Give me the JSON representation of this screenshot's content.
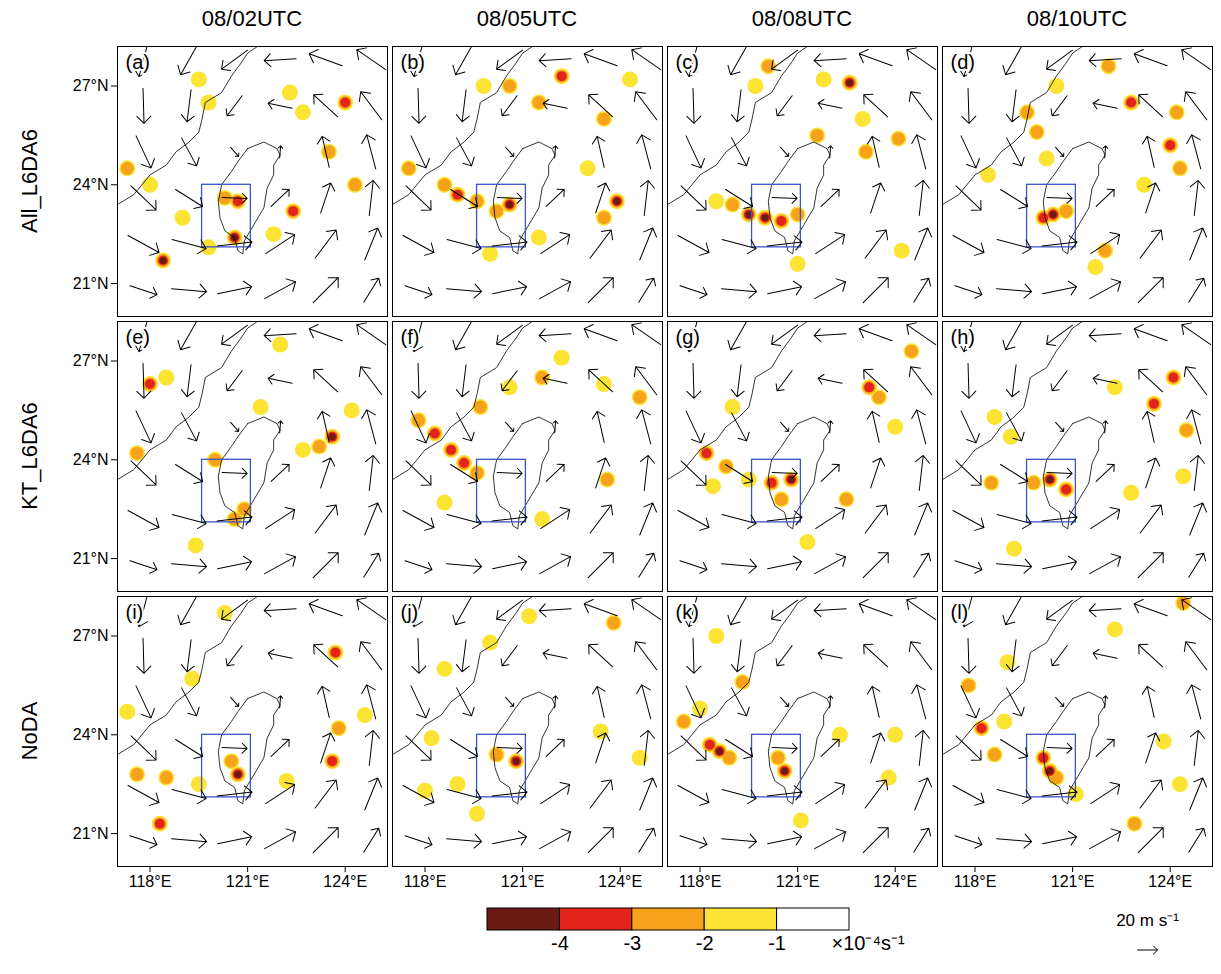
{
  "chart_data": {
    "type": "vector_map",
    "columns": [
      "08/02UTC",
      "08/05UTC",
      "08/08UTC",
      "08/10UTC"
    ],
    "rows": [
      "All_L6DA6",
      "KT_L6DA6",
      "NoDA"
    ],
    "xlim": [
      117,
      125.3
    ],
    "xticks": [
      {
        "value": 118,
        "label": "118°E"
      },
      {
        "value": 121,
        "label": "121°E"
      },
      {
        "value": 124,
        "label": "124°E"
      }
    ],
    "ylim": [
      20,
      28.2
    ],
    "yticks": [
      {
        "value": 21,
        "label": "21°N"
      },
      {
        "value": 24,
        "label": "24°N"
      },
      {
        "value": 27,
        "label": "27°N"
      }
    ],
    "box": {
      "lon": [
        119.6,
        121.1
      ],
      "lat": [
        22.1,
        24.0
      ]
    },
    "coastlines": [
      [
        [
          121.0,
          25.1
        ],
        [
          121.5,
          25.3
        ],
        [
          121.9,
          25.1
        ],
        [
          122.0,
          24.9
        ],
        [
          121.8,
          24.6
        ],
        [
          121.8,
          24.3
        ],
        [
          121.6,
          23.9
        ],
        [
          121.5,
          23.3
        ],
        [
          121.2,
          22.8
        ],
        [
          120.9,
          22.3
        ],
        [
          120.85,
          21.9
        ],
        [
          120.7,
          22.0
        ],
        [
          120.6,
          22.4
        ],
        [
          120.3,
          22.6
        ],
        [
          120.15,
          23.0
        ],
        [
          120.1,
          23.5
        ],
        [
          120.2,
          24.0
        ],
        [
          120.5,
          24.4
        ],
        [
          120.7,
          24.7
        ],
        [
          121.0,
          25.1
        ]
      ],
      [
        [
          117.0,
          23.4
        ],
        [
          117.5,
          23.7
        ],
        [
          118.0,
          24.3
        ],
        [
          118.5,
          24.6
        ],
        [
          118.8,
          25.0
        ],
        [
          119.2,
          25.3
        ],
        [
          119.5,
          25.6
        ],
        [
          119.6,
          26.0
        ],
        [
          119.7,
          26.5
        ],
        [
          120.2,
          26.8
        ],
        [
          120.5,
          27.3
        ],
        [
          120.8,
          27.7
        ],
        [
          121.0,
          28.0
        ],
        [
          121.3,
          28.2
        ]
      ]
    ],
    "wind": {
      "lon": [
        117.8,
        119.2,
        120.6,
        122.0,
        123.4,
        124.8
      ],
      "lat": [
        20.8,
        22.2,
        23.6,
        25.0,
        26.4,
        27.8
      ],
      "u": [
        [
          27,
          35,
          34,
          31,
          25,
          15
        ],
        [
          31,
          34,
          35,
          29,
          21,
          13
        ],
        [
          25,
          27,
          25,
          18,
          10,
          4
        ],
        [
          15,
          15,
          8,
          1,
          -7,
          -9
        ],
        [
          1,
          -4,
          -15,
          -24,
          -24,
          -21
        ],
        [
          -9,
          -17,
          -26,
          -32,
          -33,
          -29
        ]
      ],
      "v": [
        [
          -9,
          -3,
          7,
          17,
          25,
          24
        ],
        [
          -17,
          -9,
          4,
          19,
          28,
          32
        ],
        [
          -24,
          -17,
          -1,
          17,
          30,
          35
        ],
        [
          -32,
          -28,
          -9,
          12,
          31,
          34
        ],
        [
          -35,
          -32,
          -20,
          5,
          22,
          28
        ],
        [
          -34,
          -30,
          -19,
          -2,
          12,
          20
        ]
      ]
    },
    "reference_vector": {
      "value": 20,
      "label": "20 m s⁻¹"
    },
    "colorbar": {
      "bins": [
        -5,
        -4,
        -3,
        -2,
        -1,
        0
      ],
      "colors": [
        "#6b1a14",
        "#e3241b",
        "#f7a21b",
        "#fbe434",
        "#ffffff"
      ],
      "ticks": [
        -4,
        -3,
        -2,
        -1
      ],
      "label": "×10⁻⁴s⁻¹"
    },
    "panels": [
      {
        "letter": "(a)",
        "cells": [
          [
            120.3,
            23.6,
            -2.5
          ],
          [
            120.7,
            23.5,
            -3.5
          ],
          [
            120.6,
            22.4,
            -4.5
          ],
          [
            118.4,
            21.7,
            -4.5
          ],
          [
            117.3,
            24.5,
            -2.5
          ],
          [
            118.0,
            24.0,
            -1.5
          ],
          [
            119.0,
            23.0,
            -1.5
          ],
          [
            124.0,
            26.5,
            -3.5
          ],
          [
            123.5,
            25.0,
            -2.5
          ],
          [
            122.7,
            26.2,
            -2.0
          ],
          [
            122.3,
            26.8,
            -1.5
          ],
          [
            124.3,
            24.0,
            -2.5
          ],
          [
            122.4,
            23.2,
            -3.5
          ],
          [
            121.8,
            22.5,
            -1.5
          ],
          [
            119.8,
            22.1,
            -1.5
          ],
          [
            119.5,
            27.2,
            -1.5
          ],
          [
            119.8,
            26.5,
            -1.5
          ]
        ]
      },
      {
        "letter": "(b)",
        "cells": [
          [
            118.6,
            24.0,
            -2.5
          ],
          [
            119.0,
            23.7,
            -3.5
          ],
          [
            119.6,
            23.5,
            -3.0
          ],
          [
            120.6,
            23.4,
            -4.5
          ],
          [
            120.2,
            23.2,
            -2.5
          ],
          [
            123.9,
            23.5,
            -4.5
          ],
          [
            123.5,
            23.0,
            -2.5
          ],
          [
            121.5,
            22.4,
            -1.5
          ],
          [
            120.0,
            21.9,
            -2.0
          ],
          [
            119.8,
            27.0,
            -1.5
          ],
          [
            120.6,
            27.0,
            -2.5
          ],
          [
            121.5,
            26.5,
            -2.5
          ],
          [
            122.2,
            27.3,
            -3.5
          ],
          [
            123.5,
            26.0,
            -2.5
          ],
          [
            124.3,
            27.2,
            -1.5
          ],
          [
            117.5,
            24.5,
            -2.5
          ],
          [
            123.0,
            24.5,
            -1.5
          ]
        ]
      },
      {
        "letter": "(c)",
        "cells": [
          [
            119.5,
            23.1,
            -4.5
          ],
          [
            120.0,
            23.0,
            -4.5
          ],
          [
            120.5,
            22.9,
            -3.5
          ],
          [
            121.0,
            23.1,
            -2.5
          ],
          [
            119.0,
            23.4,
            -2.5
          ],
          [
            118.5,
            23.5,
            -1.5
          ],
          [
            120.1,
            27.6,
            -2.5
          ],
          [
            119.7,
            27.0,
            -1.5
          ],
          [
            121.8,
            27.2,
            -1.5
          ],
          [
            122.6,
            27.1,
            -4.5
          ],
          [
            121.6,
            25.5,
            -3.0
          ],
          [
            123.1,
            25.0,
            -2.5
          ],
          [
            124.1,
            25.4,
            -2.5
          ],
          [
            123.0,
            26.0,
            -1.5
          ],
          [
            121.0,
            21.6,
            -1.5
          ],
          [
            124.2,
            22.0,
            -1.5
          ]
        ]
      },
      {
        "letter": "(d)",
        "cells": [
          [
            120.4,
            23.1,
            -4.5
          ],
          [
            120.1,
            23.0,
            -3.5
          ],
          [
            120.8,
            23.2,
            -3.0
          ],
          [
            119.6,
            26.2,
            -3.0
          ],
          [
            119.9,
            25.6,
            -2.5
          ],
          [
            120.5,
            27.0,
            -1.5
          ],
          [
            122.1,
            27.6,
            -2.5
          ],
          [
            122.8,
            26.5,
            -3.5
          ],
          [
            124.2,
            26.2,
            -2.5
          ],
          [
            124.0,
            25.2,
            -3.5
          ],
          [
            124.3,
            24.5,
            -2.5
          ],
          [
            123.2,
            24.0,
            -1.5
          ],
          [
            122.0,
            22.0,
            -3.0
          ],
          [
            121.7,
            21.5,
            -1.5
          ],
          [
            118.4,
            24.3,
            -1.5
          ],
          [
            120.2,
            24.8,
            -1.5
          ]
        ]
      },
      {
        "letter": "(e)",
        "cells": [
          [
            120.0,
            24.0,
            -2.5
          ],
          [
            120.9,
            22.5,
            -3.0
          ],
          [
            120.6,
            22.2,
            -2.5
          ],
          [
            118.0,
            26.3,
            -3.5
          ],
          [
            118.5,
            26.5,
            -1.5
          ],
          [
            123.6,
            24.7,
            -4.5
          ],
          [
            123.2,
            24.4,
            -2.5
          ],
          [
            122.7,
            24.3,
            -2.0
          ],
          [
            117.6,
            24.2,
            -2.5
          ],
          [
            124.2,
            25.5,
            -1.5
          ],
          [
            119.4,
            21.4,
            -1.5
          ],
          [
            122.0,
            27.5,
            -1.5
          ],
          [
            121.4,
            25.6,
            -1.5
          ]
        ]
      },
      {
        "letter": "(f)",
        "cells": [
          [
            118.3,
            24.8,
            -3.5
          ],
          [
            118.8,
            24.3,
            -4.0
          ],
          [
            119.2,
            23.9,
            -3.5
          ],
          [
            119.6,
            23.6,
            -2.5
          ],
          [
            117.8,
            25.2,
            -2.5
          ],
          [
            119.7,
            25.6,
            -2.5
          ],
          [
            120.6,
            26.2,
            -1.5
          ],
          [
            121.6,
            26.5,
            -2.5
          ],
          [
            122.2,
            27.1,
            -2.0
          ],
          [
            123.5,
            26.3,
            -1.5
          ],
          [
            124.6,
            25.9,
            -2.5
          ],
          [
            123.6,
            23.4,
            -2.5
          ],
          [
            121.6,
            22.2,
            -1.5
          ],
          [
            118.6,
            22.7,
            -1.5
          ]
        ]
      },
      {
        "letter": "(g)",
        "cells": [
          [
            118.2,
            24.2,
            -3.5
          ],
          [
            118.8,
            23.8,
            -3.0
          ],
          [
            120.2,
            23.3,
            -3.5
          ],
          [
            120.8,
            23.4,
            -4.5
          ],
          [
            120.5,
            22.8,
            -3.0
          ],
          [
            119.5,
            23.4,
            -2.0
          ],
          [
            118.4,
            23.2,
            -1.5
          ],
          [
            123.2,
            26.2,
            -4.0
          ],
          [
            123.5,
            25.9,
            -2.5
          ],
          [
            124.5,
            27.3,
            -2.5
          ],
          [
            119.0,
            25.6,
            -1.5
          ],
          [
            124.0,
            25.0,
            -1.5
          ],
          [
            122.5,
            22.8,
            -2.5
          ],
          [
            121.3,
            21.5,
            -1.5
          ]
        ]
      },
      {
        "letter": "(h)",
        "cells": [
          [
            120.3,
            23.4,
            -4.5
          ],
          [
            119.8,
            23.3,
            -2.5
          ],
          [
            120.8,
            23.1,
            -3.5
          ],
          [
            118.5,
            23.3,
            -2.5
          ],
          [
            123.5,
            25.7,
            -4.0
          ],
          [
            124.1,
            26.5,
            -3.5
          ],
          [
            124.5,
            24.9,
            -3.0
          ],
          [
            122.3,
            26.2,
            -2.0
          ],
          [
            118.6,
            25.3,
            -1.5
          ],
          [
            119.1,
            24.7,
            -1.5
          ],
          [
            119.2,
            21.3,
            -2.0
          ],
          [
            122.8,
            23.0,
            -1.5
          ],
          [
            124.4,
            23.5,
            -1.5
          ]
        ]
      },
      {
        "letter": "(i)",
        "cells": [
          [
            120.7,
            22.8,
            -4.5
          ],
          [
            120.5,
            23.2,
            -3.0
          ],
          [
            118.5,
            22.7,
            -3.0
          ],
          [
            117.6,
            22.8,
            -2.5
          ],
          [
            118.3,
            21.3,
            -3.5
          ],
          [
            119.5,
            22.5,
            -1.5
          ],
          [
            123.8,
            24.2,
            -3.0
          ],
          [
            123.6,
            23.2,
            -3.5
          ],
          [
            124.6,
            24.6,
            -2.0
          ],
          [
            123.7,
            26.5,
            -4.0
          ],
          [
            122.2,
            22.6,
            -2.0
          ],
          [
            117.3,
            24.7,
            -1.5
          ],
          [
            119.3,
            25.7,
            -1.5
          ],
          [
            120.3,
            27.7,
            -1.5
          ]
        ]
      },
      {
        "letter": "(j)",
        "cells": [
          [
            120.8,
            23.2,
            -4.5
          ],
          [
            120.2,
            23.4,
            -2.5
          ],
          [
            118.2,
            23.9,
            -1.5
          ],
          [
            119.0,
            22.5,
            -2.0
          ],
          [
            118.0,
            22.3,
            -1.5
          ],
          [
            123.8,
            27.4,
            -3.0
          ],
          [
            121.2,
            27.6,
            -1.5
          ],
          [
            120.0,
            26.8,
            -1.5
          ],
          [
            123.4,
            24.1,
            -1.5
          ],
          [
            124.6,
            23.3,
            -1.5
          ],
          [
            118.6,
            26.0,
            -1.5
          ],
          [
            119.6,
            21.6,
            -1.5
          ]
        ]
      },
      {
        "letter": "(k)",
        "cells": [
          [
            118.3,
            23.7,
            -3.5
          ],
          [
            118.6,
            23.5,
            -4.5
          ],
          [
            118.9,
            23.3,
            -3.0
          ],
          [
            120.6,
            22.9,
            -4.5
          ],
          [
            120.4,
            23.3,
            -3.0
          ],
          [
            117.5,
            24.4,
            -2.5
          ],
          [
            118.0,
            24.8,
            -2.0
          ],
          [
            119.3,
            25.6,
            -2.5
          ],
          [
            124.0,
            24.0,
            -1.5
          ],
          [
            123.8,
            22.7,
            -1.5
          ],
          [
            122.3,
            24.0,
            -1.5
          ],
          [
            121.1,
            21.4,
            -1.5
          ],
          [
            118.5,
            27.0,
            -1.5
          ]
        ]
      },
      {
        "letter": "(l)",
        "cells": [
          [
            120.1,
            23.3,
            -3.5
          ],
          [
            120.3,
            22.9,
            -4.5
          ],
          [
            120.5,
            22.7,
            -3.0
          ],
          [
            118.6,
            23.4,
            -2.5
          ],
          [
            118.2,
            24.2,
            -4.0
          ],
          [
            118.9,
            24.4,
            -2.0
          ],
          [
            117.8,
            25.5,
            -2.5
          ],
          [
            122.3,
            27.2,
            -1.5
          ],
          [
            124.4,
            28.0,
            -2.5
          ],
          [
            121.1,
            22.2,
            -2.0
          ],
          [
            122.9,
            21.3,
            -3.0
          ],
          [
            124.3,
            22.5,
            -1.5
          ],
          [
            123.8,
            23.8,
            -1.5
          ],
          [
            119.0,
            26.2,
            -1.5
          ]
        ]
      }
    ]
  }
}
